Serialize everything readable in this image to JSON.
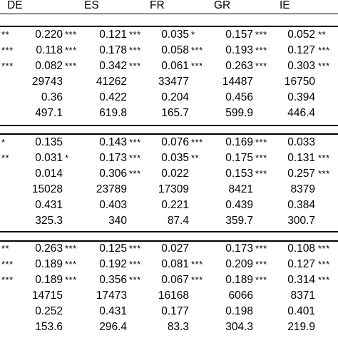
{
  "header": {
    "columns": [
      "DE",
      "ES",
      "FR",
      "GR",
      "IE"
    ]
  },
  "panels": [
    {
      "rows": [
        {
          "lead": "**",
          "cells": [
            {
              "value": "0.220",
              "stars": "***"
            },
            {
              "value": "0.121",
              "stars": "***"
            },
            {
              "value": "0.035",
              "stars": "*"
            },
            {
              "value": "0.157",
              "stars": "***"
            },
            {
              "value": "0.052",
              "stars": "**"
            }
          ]
        },
        {
          "lead": "***",
          "cells": [
            {
              "value": "0.118",
              "stars": "***"
            },
            {
              "value": "0.178",
              "stars": "***"
            },
            {
              "value": "0.058",
              "stars": "***"
            },
            {
              "value": "0.193",
              "stars": "***"
            },
            {
              "value": "0.127",
              "stars": "***"
            }
          ]
        },
        {
          "lead": "***",
          "cells": [
            {
              "value": "0.082",
              "stars": "***"
            },
            {
              "value": "0.342",
              "stars": "***"
            },
            {
              "value": "0.061",
              "stars": "***"
            },
            {
              "value": "0.263",
              "stars": "***"
            },
            {
              "value": "0.303",
              "stars": "***"
            }
          ]
        },
        {
          "lead": "",
          "cells": [
            {
              "value": "29743",
              "stars": ""
            },
            {
              "value": "41262",
              "stars": ""
            },
            {
              "value": "33477",
              "stars": ""
            },
            {
              "value": "14487",
              "stars": ""
            },
            {
              "value": "16750",
              "stars": ""
            }
          ]
        },
        {
          "lead": "",
          "cells": [
            {
              "value": "0.36",
              "stars": ""
            },
            {
              "value": "0.422",
              "stars": ""
            },
            {
              "value": "0.204",
              "stars": ""
            },
            {
              "value": "0.456",
              "stars": ""
            },
            {
              "value": "0.394",
              "stars": ""
            }
          ]
        },
        {
          "lead": "",
          "cells": [
            {
              "value": "497.1",
              "stars": ""
            },
            {
              "value": "619.8",
              "stars": ""
            },
            {
              "value": "165.7",
              "stars": ""
            },
            {
              "value": "599.9",
              "stars": ""
            },
            {
              "value": "446.4",
              "stars": ""
            }
          ]
        }
      ]
    },
    {
      "rows": [
        {
          "lead": "*",
          "cells": [
            {
              "value": "0.135",
              "stars": ""
            },
            {
              "value": "0.143",
              "stars": "***"
            },
            {
              "value": "0.076",
              "stars": "***"
            },
            {
              "value": "0.169",
              "stars": "***"
            },
            {
              "value": "0.033",
              "stars": ""
            }
          ]
        },
        {
          "lead": "**",
          "cells": [
            {
              "value": "0.031",
              "stars": "*"
            },
            {
              "value": "0.173",
              "stars": "***"
            },
            {
              "value": "0.035",
              "stars": "**"
            },
            {
              "value": "0.175",
              "stars": "***"
            },
            {
              "value": "0.131",
              "stars": "***"
            }
          ]
        },
        {
          "lead": "",
          "cells": [
            {
              "value": "0.014",
              "stars": ""
            },
            {
              "value": "0.306",
              "stars": "***"
            },
            {
              "value": "0.022",
              "stars": ""
            },
            {
              "value": "0.153",
              "stars": "***"
            },
            {
              "value": "0.257",
              "stars": "***"
            }
          ]
        },
        {
          "lead": "",
          "cells": [
            {
              "value": "15028",
              "stars": ""
            },
            {
              "value": "23789",
              "stars": ""
            },
            {
              "value": "17309",
              "stars": ""
            },
            {
              "value": "8421",
              "stars": ""
            },
            {
              "value": "8379",
              "stars": ""
            }
          ]
        },
        {
          "lead": "",
          "cells": [
            {
              "value": "0.431",
              "stars": ""
            },
            {
              "value": "0.403",
              "stars": ""
            },
            {
              "value": "0.221",
              "stars": ""
            },
            {
              "value": "0.439",
              "stars": ""
            },
            {
              "value": "0.384",
              "stars": ""
            }
          ]
        },
        {
          "lead": "",
          "cells": [
            {
              "value": "325.3",
              "stars": ""
            },
            {
              "value": "340",
              "stars": ""
            },
            {
              "value": "87.4",
              "stars": ""
            },
            {
              "value": "359.7",
              "stars": ""
            },
            {
              "value": "300.7",
              "stars": ""
            }
          ]
        }
      ]
    },
    {
      "rows": [
        {
          "lead": "**",
          "cells": [
            {
              "value": "0.263",
              "stars": "***"
            },
            {
              "value": "0.125",
              "stars": "***"
            },
            {
              "value": "0.027",
              "stars": ""
            },
            {
              "value": "0.173",
              "stars": "***"
            },
            {
              "value": "0.108",
              "stars": "***"
            }
          ]
        },
        {
          "lead": "***",
          "cells": [
            {
              "value": "0.189",
              "stars": "***"
            },
            {
              "value": "0.192",
              "stars": "***"
            },
            {
              "value": "0.081",
              "stars": "***"
            },
            {
              "value": "0.209",
              "stars": "***"
            },
            {
              "value": "0.127",
              "stars": "***"
            }
          ]
        },
        {
          "lead": "***",
          "cells": [
            {
              "value": "0.189",
              "stars": "***"
            },
            {
              "value": "0.356",
              "stars": "***"
            },
            {
              "value": "0.067",
              "stars": "***"
            },
            {
              "value": "0.189",
              "stars": "***"
            },
            {
              "value": "0.314",
              "stars": "***"
            }
          ]
        },
        {
          "lead": "",
          "cells": [
            {
              "value": "14715",
              "stars": ""
            },
            {
              "value": "17473",
              "stars": ""
            },
            {
              "value": "16168",
              "stars": ""
            },
            {
              "value": "6066",
              "stars": ""
            },
            {
              "value": "8371",
              "stars": ""
            }
          ]
        },
        {
          "lead": "",
          "cells": [
            {
              "value": "0.252",
              "stars": ""
            },
            {
              "value": "0.431",
              "stars": ""
            },
            {
              "value": "0.177",
              "stars": ""
            },
            {
              "value": "0.198",
              "stars": ""
            },
            {
              "value": "0.401",
              "stars": ""
            }
          ]
        },
        {
          "lead": "",
          "cells": [
            {
              "value": "153.6",
              "stars": ""
            },
            {
              "value": "296.4",
              "stars": ""
            },
            {
              "value": "83.3",
              "stars": ""
            },
            {
              "value": "304.3",
              "stars": ""
            },
            {
              "value": "219.9",
              "stars": ""
            }
          ]
        }
      ]
    }
  ]
}
